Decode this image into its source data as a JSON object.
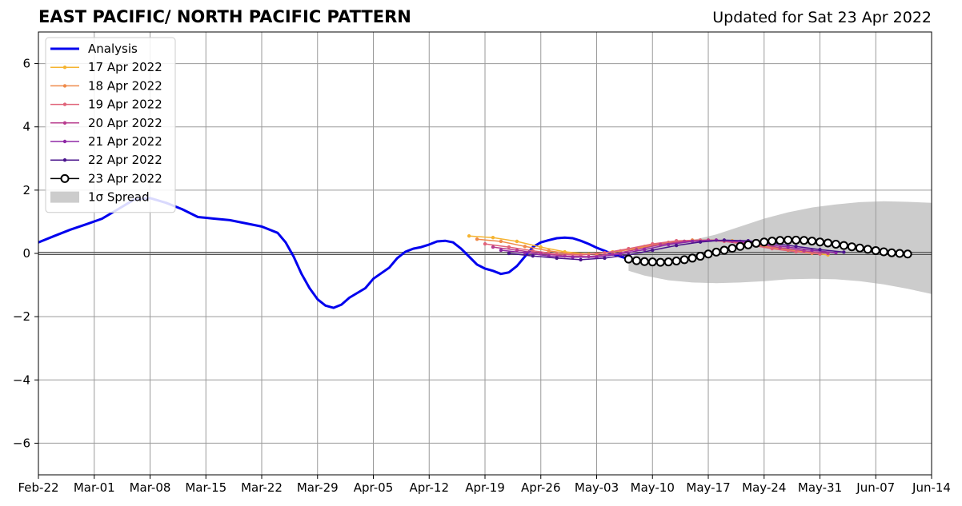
{
  "chart_data": {
    "type": "line",
    "title": "EAST PACIFIC/ NORTH PACIFIC PATTERN",
    "subtitle": "Updated for Sat 23 Apr 2022",
    "xlabel": "",
    "ylabel": "",
    "ylim": [
      -7,
      7
    ],
    "yticks": [
      -6,
      -4,
      -2,
      0,
      2,
      4,
      6
    ],
    "ytick_labels": [
      "−6",
      "−4",
      "−2",
      "0",
      "2",
      "4",
      "6"
    ],
    "xlim": [
      "2022-02-22",
      "2022-06-14"
    ],
    "xticks": [
      "2022-02-22",
      "2022-03-01",
      "2022-03-08",
      "2022-03-15",
      "2022-03-22",
      "2022-03-29",
      "2022-04-05",
      "2022-04-12",
      "2022-04-19",
      "2022-04-26",
      "2022-05-03",
      "2022-05-10",
      "2022-05-17",
      "2022-05-24",
      "2022-05-31",
      "2022-06-07",
      "2022-06-14"
    ],
    "xtick_labels": [
      "Feb-22",
      "Mar-01",
      "Mar-08",
      "Mar-15",
      "Mar-22",
      "Mar-29",
      "Apr-05",
      "Apr-12",
      "Apr-19",
      "Apr-26",
      "May-03",
      "May-10",
      "May-17",
      "May-24",
      "May-31",
      "Jun-07",
      "Jun-14"
    ],
    "grid": true,
    "legend_position": "upper-left",
    "series": [
      {
        "name": "Analysis",
        "color": "#0000ee",
        "points": [
          [
            "2022-02-22",
            0.35
          ],
          [
            "2022-02-24",
            0.55
          ],
          [
            "2022-02-26",
            0.75
          ],
          [
            "2022-02-28",
            0.92
          ],
          [
            "2022-03-02",
            1.1
          ],
          [
            "2022-03-04",
            1.4
          ],
          [
            "2022-03-06",
            1.7
          ],
          [
            "2022-03-08",
            1.75
          ],
          [
            "2022-03-10",
            1.6
          ],
          [
            "2022-03-12",
            1.4
          ],
          [
            "2022-03-14",
            1.15
          ],
          [
            "2022-03-16",
            1.1
          ],
          [
            "2022-03-18",
            1.05
          ],
          [
            "2022-03-20",
            0.95
          ],
          [
            "2022-03-22",
            0.85
          ],
          [
            "2022-03-24",
            0.65
          ],
          [
            "2022-03-25",
            0.35
          ],
          [
            "2022-03-26",
            -0.1
          ],
          [
            "2022-03-27",
            -0.65
          ],
          [
            "2022-03-28",
            -1.1
          ],
          [
            "2022-03-29",
            -1.45
          ],
          [
            "2022-03-30",
            -1.65
          ],
          [
            "2022-03-31",
            -1.72
          ],
          [
            "2022-04-01",
            -1.62
          ],
          [
            "2022-04-02",
            -1.4
          ],
          [
            "2022-04-04",
            -1.1
          ],
          [
            "2022-04-05",
            -0.8
          ],
          [
            "2022-04-07",
            -0.45
          ],
          [
            "2022-04-08",
            -0.15
          ],
          [
            "2022-04-09",
            0.05
          ],
          [
            "2022-04-10",
            0.15
          ],
          [
            "2022-04-11",
            0.2
          ],
          [
            "2022-04-12",
            0.28
          ],
          [
            "2022-04-13",
            0.38
          ],
          [
            "2022-04-14",
            0.4
          ],
          [
            "2022-04-15",
            0.35
          ],
          [
            "2022-04-16",
            0.15
          ],
          [
            "2022-04-17",
            -0.1
          ],
          [
            "2022-04-18",
            -0.35
          ],
          [
            "2022-04-19",
            -0.48
          ],
          [
            "2022-04-20",
            -0.55
          ],
          [
            "2022-04-21",
            -0.65
          ],
          [
            "2022-04-22",
            -0.6
          ],
          [
            "2022-04-23",
            -0.4
          ],
          [
            "2022-04-24",
            -0.1
          ],
          [
            "2022-04-25",
            0.2
          ],
          [
            "2022-04-26",
            0.35
          ],
          [
            "2022-04-27",
            0.42
          ],
          [
            "2022-04-28",
            0.48
          ],
          [
            "2022-04-29",
            0.5
          ],
          [
            "2022-04-30",
            0.48
          ],
          [
            "2022-05-01",
            0.4
          ],
          [
            "2022-05-02",
            0.3
          ],
          [
            "2022-05-03",
            0.18
          ],
          [
            "2022-05-04",
            0.08
          ],
          [
            "2022-05-05",
            -0.02
          ],
          [
            "2022-05-06",
            -0.1
          ],
          [
            "2022-05-07",
            -0.18
          ]
        ]
      },
      {
        "name": "17 Apr 2022",
        "color": "#f5b431",
        "points": [
          [
            "2022-04-17",
            0.55
          ],
          [
            "2022-04-20",
            0.5
          ],
          [
            "2022-04-23",
            0.38
          ],
          [
            "2022-04-26",
            0.2
          ],
          [
            "2022-04-29",
            0.05
          ],
          [
            "2022-05-02",
            -0.02
          ],
          [
            "2022-05-05",
            0.05
          ],
          [
            "2022-05-08",
            0.15
          ],
          [
            "2022-05-11",
            0.28
          ],
          [
            "2022-05-14",
            0.38
          ],
          [
            "2022-05-17",
            0.42
          ],
          [
            "2022-05-20",
            0.4
          ],
          [
            "2022-05-23",
            0.3
          ],
          [
            "2022-05-26",
            0.18
          ],
          [
            "2022-05-29",
            0.05
          ],
          [
            "2022-06-01",
            -0.05
          ]
        ]
      },
      {
        "name": "18 Apr 2022",
        "color": "#ef8a4a",
        "points": [
          [
            "2022-04-18",
            0.45
          ],
          [
            "2022-04-21",
            0.38
          ],
          [
            "2022-04-24",
            0.22
          ],
          [
            "2022-04-27",
            0.08
          ],
          [
            "2022-04-30",
            -0.02
          ],
          [
            "2022-05-03",
            -0.02
          ],
          [
            "2022-05-06",
            0.08
          ],
          [
            "2022-05-09",
            0.22
          ],
          [
            "2022-05-12",
            0.35
          ],
          [
            "2022-05-15",
            0.42
          ],
          [
            "2022-05-18",
            0.42
          ],
          [
            "2022-05-21",
            0.35
          ],
          [
            "2022-05-24",
            0.22
          ],
          [
            "2022-05-27",
            0.1
          ],
          [
            "2022-05-30",
            0.0
          ]
        ]
      },
      {
        "name": "19 Apr 2022",
        "color": "#e0647a",
        "points": [
          [
            "2022-04-19",
            0.3
          ],
          [
            "2022-04-22",
            0.2
          ],
          [
            "2022-04-25",
            0.08
          ],
          [
            "2022-04-28",
            -0.02
          ],
          [
            "2022-05-01",
            -0.05
          ],
          [
            "2022-05-04",
            0.02
          ],
          [
            "2022-05-07",
            0.15
          ],
          [
            "2022-05-10",
            0.3
          ],
          [
            "2022-05-13",
            0.4
          ],
          [
            "2022-05-16",
            0.42
          ],
          [
            "2022-05-19",
            0.38
          ],
          [
            "2022-05-22",
            0.28
          ],
          [
            "2022-05-25",
            0.15
          ],
          [
            "2022-05-28",
            0.05
          ],
          [
            "2022-05-31",
            -0.02
          ]
        ]
      },
      {
        "name": "20 Apr 2022",
        "color": "#b83c8e",
        "points": [
          [
            "2022-04-20",
            0.2
          ],
          [
            "2022-04-23",
            0.1
          ],
          [
            "2022-04-26",
            0.0
          ],
          [
            "2022-04-29",
            -0.08
          ],
          [
            "2022-05-02",
            -0.1
          ],
          [
            "2022-05-05",
            -0.02
          ],
          [
            "2022-05-08",
            0.12
          ],
          [
            "2022-05-11",
            0.28
          ],
          [
            "2022-05-14",
            0.38
          ],
          [
            "2022-05-17",
            0.42
          ],
          [
            "2022-05-20",
            0.38
          ],
          [
            "2022-05-23",
            0.3
          ],
          [
            "2022-05-26",
            0.18
          ],
          [
            "2022-05-29",
            0.08
          ],
          [
            "2022-06-01",
            0.0
          ]
        ]
      },
      {
        "name": "21 Apr 2022",
        "color": "#8f28a6",
        "points": [
          [
            "2022-04-21",
            0.1
          ],
          [
            "2022-04-24",
            0.02
          ],
          [
            "2022-04-27",
            -0.08
          ],
          [
            "2022-04-30",
            -0.12
          ],
          [
            "2022-05-03",
            -0.12
          ],
          [
            "2022-05-06",
            -0.02
          ],
          [
            "2022-05-09",
            0.12
          ],
          [
            "2022-05-12",
            0.28
          ],
          [
            "2022-05-15",
            0.38
          ],
          [
            "2022-05-18",
            0.42
          ],
          [
            "2022-05-21",
            0.38
          ],
          [
            "2022-05-24",
            0.3
          ],
          [
            "2022-05-27",
            0.2
          ],
          [
            "2022-05-30",
            0.1
          ],
          [
            "2022-06-02",
            0.02
          ]
        ]
      },
      {
        "name": "22 Apr 2022",
        "color": "#4a148c",
        "points": [
          [
            "2022-04-22",
            0.0
          ],
          [
            "2022-04-25",
            -0.08
          ],
          [
            "2022-04-28",
            -0.15
          ],
          [
            "2022-05-01",
            -0.2
          ],
          [
            "2022-05-04",
            -0.15
          ],
          [
            "2022-05-07",
            -0.05
          ],
          [
            "2022-05-10",
            0.1
          ],
          [
            "2022-05-13",
            0.25
          ],
          [
            "2022-05-16",
            0.36
          ],
          [
            "2022-05-19",
            0.42
          ],
          [
            "2022-05-22",
            0.4
          ],
          [
            "2022-05-25",
            0.32
          ],
          [
            "2022-05-28",
            0.22
          ],
          [
            "2022-05-31",
            0.12
          ],
          [
            "2022-06-03",
            0.04
          ]
        ]
      },
      {
        "name": "23 Apr 2022",
        "color": "#000000",
        "marker": "open-circle",
        "points": [
          [
            "2022-05-07",
            -0.18
          ],
          [
            "2022-05-08",
            -0.23
          ],
          [
            "2022-05-09",
            -0.26
          ],
          [
            "2022-05-10",
            -0.27
          ],
          [
            "2022-05-11",
            -0.28
          ],
          [
            "2022-05-12",
            -0.27
          ],
          [
            "2022-05-13",
            -0.24
          ],
          [
            "2022-05-14",
            -0.2
          ],
          [
            "2022-05-15",
            -0.15
          ],
          [
            "2022-05-16",
            -0.09
          ],
          [
            "2022-05-17",
            -0.02
          ],
          [
            "2022-05-18",
            0.04
          ],
          [
            "2022-05-19",
            0.1
          ],
          [
            "2022-05-20",
            0.16
          ],
          [
            "2022-05-21",
            0.22
          ],
          [
            "2022-05-22",
            0.27
          ],
          [
            "2022-05-23",
            0.32
          ],
          [
            "2022-05-24",
            0.36
          ],
          [
            "2022-05-25",
            0.39
          ],
          [
            "2022-05-26",
            0.41
          ],
          [
            "2022-05-27",
            0.42
          ],
          [
            "2022-05-28",
            0.42
          ],
          [
            "2022-05-29",
            0.41
          ],
          [
            "2022-05-30",
            0.39
          ],
          [
            "2022-05-31",
            0.36
          ],
          [
            "2022-06-01",
            0.33
          ],
          [
            "2022-06-02",
            0.29
          ],
          [
            "2022-06-03",
            0.25
          ],
          [
            "2022-06-04",
            0.21
          ],
          [
            "2022-06-05",
            0.17
          ],
          [
            "2022-06-06",
            0.13
          ],
          [
            "2022-06-07",
            0.09
          ],
          [
            "2022-06-08",
            0.05
          ],
          [
            "2022-06-09",
            0.02
          ],
          [
            "2022-06-10",
            0.0
          ],
          [
            "2022-06-11",
            -0.02
          ]
        ]
      }
    ],
    "spread": {
      "name": "1σ Spread",
      "color": "#cccccc",
      "points": [
        [
          "2022-05-07",
          -0.2,
          -0.55
        ],
        [
          "2022-05-09",
          0.2,
          -0.7
        ],
        [
          "2022-05-12",
          0.3,
          -0.85
        ],
        [
          "2022-05-15",
          0.42,
          -0.92
        ],
        [
          "2022-05-18",
          0.6,
          -0.94
        ],
        [
          "2022-05-21",
          0.85,
          -0.92
        ],
        [
          "2022-05-24",
          1.1,
          -0.88
        ],
        [
          "2022-05-27",
          1.3,
          -0.82
        ],
        [
          "2022-05-30",
          1.45,
          -0.8
        ],
        [
          "2022-06-02",
          1.55,
          -0.82
        ],
        [
          "2022-06-05",
          1.62,
          -0.88
        ],
        [
          "2022-06-08",
          1.65,
          -0.98
        ],
        [
          "2022-06-11",
          1.63,
          -1.12
        ],
        [
          "2022-06-14",
          1.6,
          -1.28
        ],
        [
          "2022-06-17",
          1.58,
          -1.43
        ],
        [
          "2022-06-19",
          1.57,
          -1.55
        ],
        [
          "2022-06-21",
          1.56,
          -1.65
        ]
      ]
    }
  }
}
